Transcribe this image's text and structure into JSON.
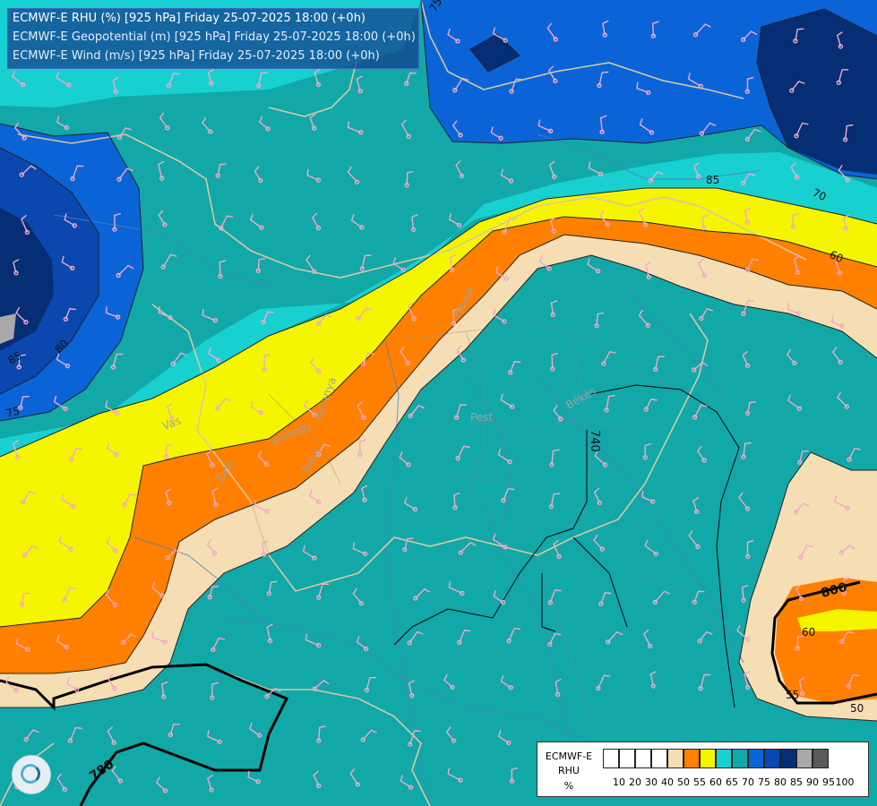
{
  "header": {
    "line1": "ECMWF-E RHU (%) [925 hPa] Friday 25-07-2025 18:00 (+0h)",
    "line2": "ECMWF-E Geopotential (m) [925 hPa] Friday 25-07-2025 18:00 (+0h)",
    "line3": "ECMWF-E Wind (m/s) [925 hPa] Friday 25-07-2025 18:00 (+0h)"
  },
  "legend": {
    "name_lines": [
      "ECMWF-E",
      "RHU",
      "%"
    ],
    "ticks": [
      "10",
      "20",
      "30",
      "40",
      "50",
      "55",
      "60",
      "65",
      "70",
      "75",
      "80",
      "85",
      "90",
      "95",
      "100"
    ],
    "colors": [
      "#ffffff",
      "#ffffff",
      "#ffffff",
      "#ffffff",
      "#f5deb3",
      "#ff8000",
      "#f5f500",
      "#19d0d0",
      "#12a8a8",
      "#0a64d8",
      "#0a48b0",
      "#062e74",
      "#a9a9a9",
      "#5a5a5a"
    ]
  },
  "map_labels": {
    "rhu_contours": [
      "75",
      "85",
      "85",
      "80",
      "75",
      "70",
      "60",
      "60",
      "55",
      "50"
    ],
    "geopotential_contours": [
      "800",
      "780",
      "740"
    ],
    "regions": [
      "Pest",
      "Békés",
      "Vas",
      "Zala",
      "Heves",
      "Tolna",
      "Somogy",
      "Baranya"
    ]
  },
  "colors": {
    "rhu_50": "#f5deb3",
    "rhu_55": "#ff8000",
    "rhu_60": "#f5f500",
    "rhu_65": "#19d0d0",
    "rhu_70": "#12a8a8",
    "rhu_75": "#0a64d8",
    "rhu_80": "#0a48b0",
    "rhu_85": "#062e74",
    "rhu_90": "#a9a9a9",
    "wind_barb": "#f0a8c8",
    "border": "#d8c8a0",
    "river": "#4a80c0"
  }
}
